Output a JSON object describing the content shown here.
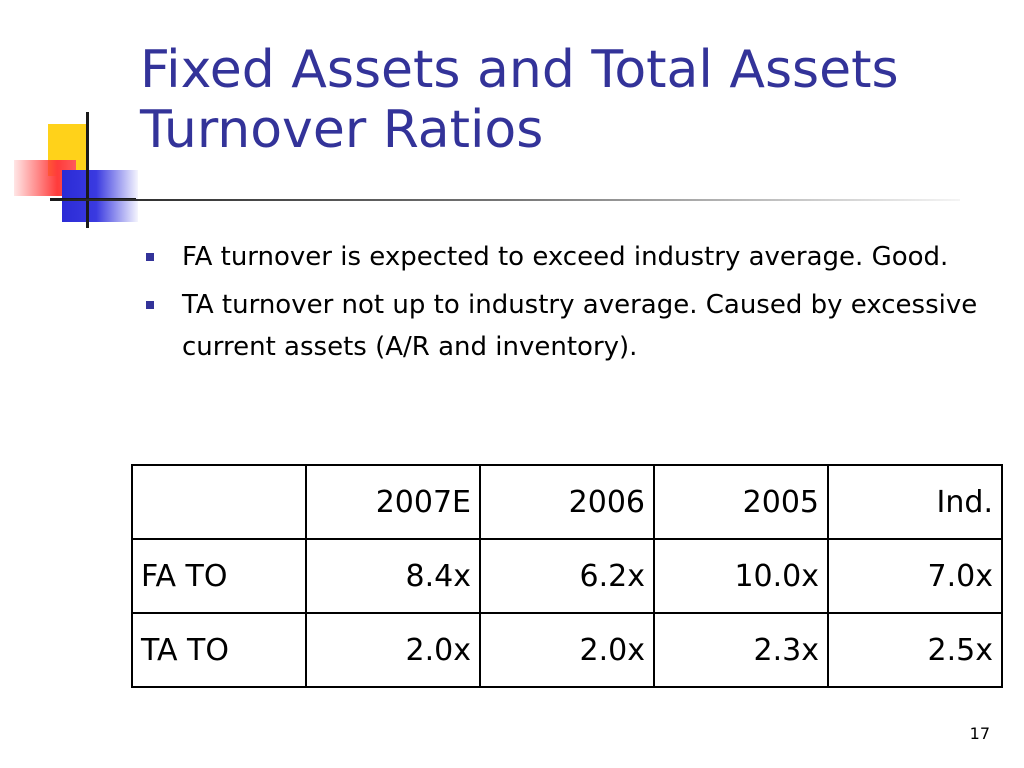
{
  "slide": {
    "title_line1": "Fixed Assets and Total Assets",
    "title_line2": "Turnover Ratios",
    "bullets": [
      "FA turnover is expected to exceed industry average.  Good.",
      "TA turnover not up to industry average.  Caused by excessive current assets (A/R and inventory)."
    ],
    "page_number": "17"
  },
  "table": {
    "headers": [
      "",
      "2007E",
      "2006",
      "2005",
      "Ind."
    ],
    "rows": [
      {
        "label": "FA TO",
        "values": [
          "8.4x",
          "6.2x",
          "10.0x",
          "7.0x"
        ]
      },
      {
        "label": "TA TO",
        "values": [
          "2.0x",
          "2.0x",
          "2.3x",
          "2.5x"
        ]
      }
    ]
  },
  "colors": {
    "title": "#333399",
    "bullet": "#333399",
    "logo_yellow": "#ffd21a",
    "logo_red": "#ff3b3b",
    "logo_blue": "#2b2bd6"
  }
}
